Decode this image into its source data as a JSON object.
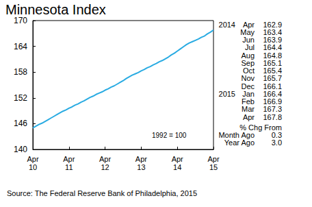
{
  "chart_data": {
    "type": "line",
    "title": "Minnesota Index",
    "annotation": "1992 = 100",
    "source": "Source: The Federal Reserve Bank of Philadelphia, 2015",
    "color": "#29abe2",
    "grid": false,
    "categories": [
      "Apr 10",
      null,
      null,
      null,
      null,
      null,
      null,
      null,
      null,
      null,
      null,
      null,
      "Apr 11",
      null,
      null,
      null,
      null,
      null,
      null,
      null,
      null,
      null,
      null,
      null,
      "Apr 12",
      null,
      null,
      null,
      null,
      null,
      null,
      null,
      null,
      null,
      null,
      null,
      "Apr 13",
      null,
      null,
      null,
      null,
      null,
      null,
      null,
      null,
      null,
      null,
      null,
      "Apr 14",
      null,
      null,
      null,
      null,
      null,
      null,
      null,
      null,
      null,
      null,
      null,
      "Apr 15"
    ],
    "values": [
      145.0,
      145.4,
      145.8,
      146.1,
      146.5,
      146.9,
      147.3,
      147.7,
      148.1,
      148.5,
      148.9,
      149.2,
      149.6,
      149.9,
      150.3,
      150.6,
      151.0,
      151.3,
      151.7,
      152.1,
      152.4,
      152.8,
      153.1,
      153.4,
      153.8,
      154.1,
      154.5,
      154.8,
      155.2,
      155.6,
      156.0,
      156.5,
      156.9,
      157.3,
      157.6,
      157.9,
      158.3,
      158.6,
      159.0,
      159.3,
      159.7,
      160.0,
      160.4,
      160.7,
      161.1,
      161.5,
      162.0,
      162.4,
      162.9,
      163.4,
      163.9,
      164.4,
      164.8,
      165.1,
      165.4,
      165.7,
      166.1,
      166.4,
      166.9,
      167.3,
      167.8
    ],
    "ylim": [
      140,
      170
    ],
    "yticks": [
      140,
      146,
      152,
      158,
      164,
      170
    ]
  },
  "side_table": {
    "rows": [
      {
        "year": "2014",
        "month": "Apr",
        "value": "162.9"
      },
      {
        "year": null,
        "month": "May",
        "value": "163.4"
      },
      {
        "year": null,
        "month": "Jun",
        "value": "163.9"
      },
      {
        "year": null,
        "month": "Jul",
        "value": "164.4"
      },
      {
        "year": null,
        "month": "Aug",
        "value": "164.8"
      },
      {
        "year": null,
        "month": "Sep",
        "value": "165.1"
      },
      {
        "year": null,
        "month": "Oct",
        "value": "165.4"
      },
      {
        "year": null,
        "month": "Nov",
        "value": "165.7"
      },
      {
        "year": null,
        "month": "Dec",
        "value": "166.1"
      },
      {
        "year": "2015",
        "month": "Jan",
        "value": "166.4"
      },
      {
        "year": null,
        "month": "Feb",
        "value": "166.9"
      },
      {
        "year": null,
        "month": "Mar",
        "value": "167.3"
      },
      {
        "year": null,
        "month": "Apr",
        "value": "167.8"
      }
    ],
    "change_header": "% Chg From",
    "changes": [
      {
        "label": "Month Ago",
        "value": "0.3"
      },
      {
        "label": "Year Ago",
        "value": "3.0"
      }
    ]
  }
}
